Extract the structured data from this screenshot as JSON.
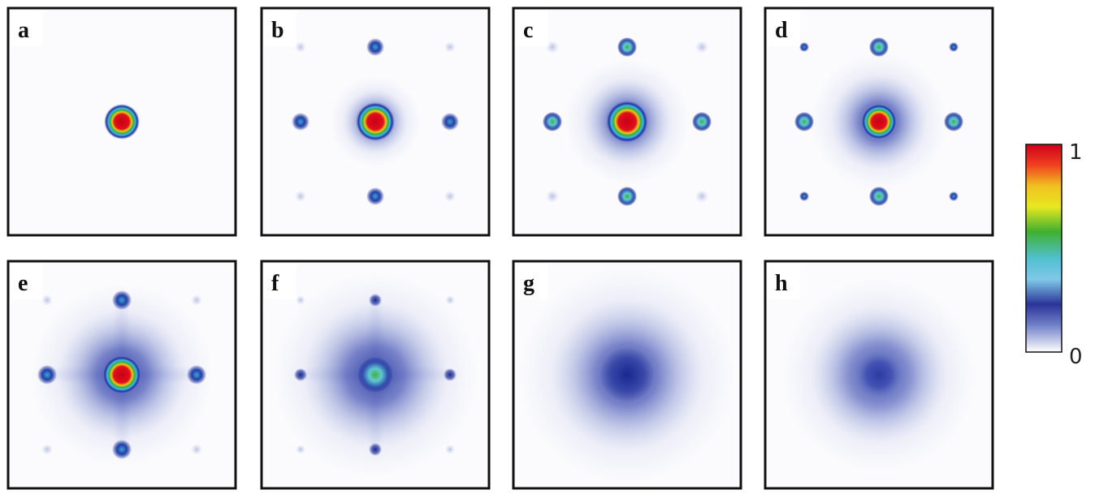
{
  "panels": [
    {
      "label": "a"
    },
    {
      "label": "b"
    },
    {
      "label": "c"
    },
    {
      "label": "d"
    },
    {
      "label": "e"
    },
    {
      "label": "f"
    },
    {
      "label": "g"
    },
    {
      "label": "h"
    }
  ],
  "colorbar": {
    "max_label": "1",
    "min_label": "0"
  }
}
